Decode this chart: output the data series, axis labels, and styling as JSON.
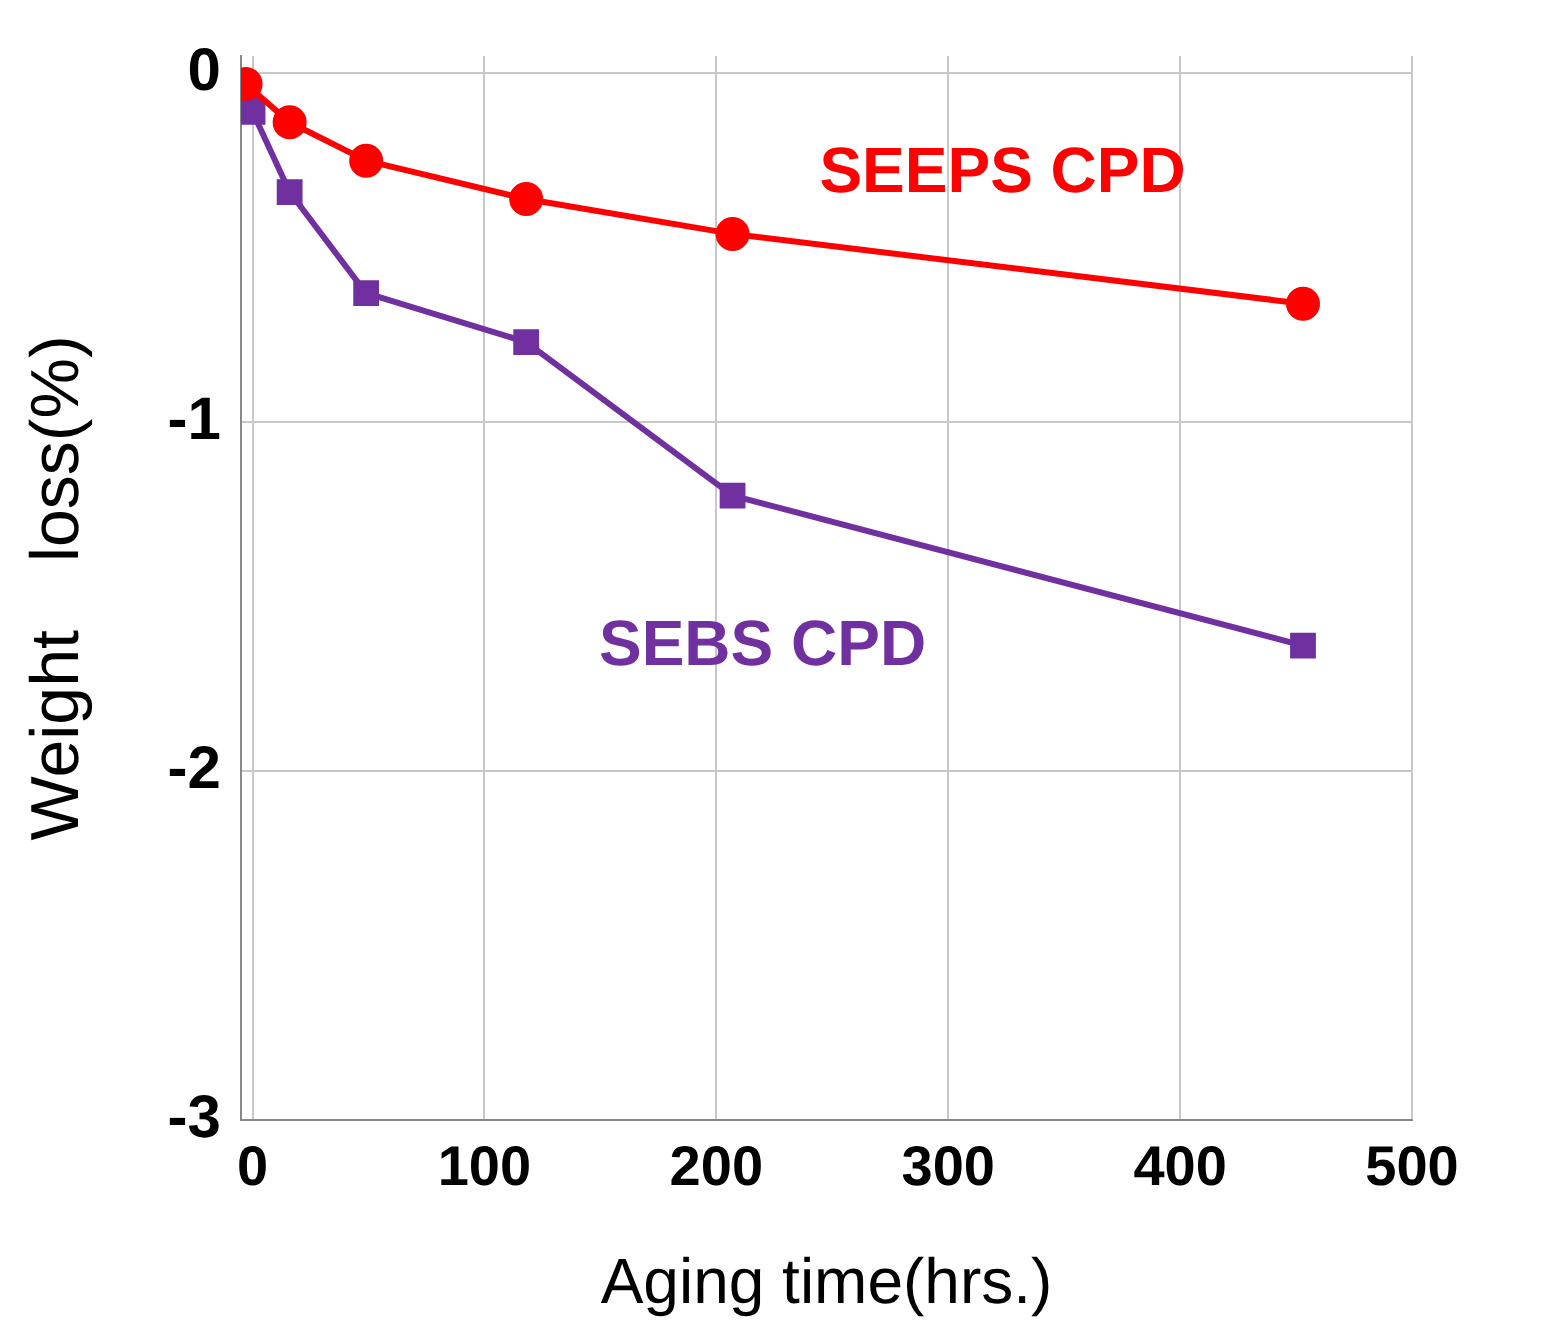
{
  "chart_data": {
    "type": "line",
    "xlabel": "Aging time(hrs.)",
    "ylabel": "Weight　loss(%)",
    "xlim": [
      -5,
      500
    ],
    "xticks": [
      0,
      100,
      200,
      300,
      400,
      500
    ],
    "ylim": [
      -3,
      0.05
    ],
    "yticks": [
      -3,
      -2,
      -1,
      0
    ],
    "grid": true,
    "legend": false,
    "series": [
      {
        "name": "SEEPS CPD",
        "color": "#ff0000",
        "marker": "circle",
        "x": [
          -3,
          16,
          49,
          118,
          207,
          453
        ],
        "values": [
          -0.03,
          -0.14,
          -0.25,
          -0.36,
          -0.46,
          -0.66
        ]
      },
      {
        "name": "SEBS CPD",
        "color": "#7030a0",
        "marker": "square",
        "x": [
          -3,
          0,
          16,
          49,
          118,
          207,
          453
        ],
        "values": [
          -0.05,
          -0.11,
          -0.34,
          -0.63,
          -0.77,
          -1.21,
          -1.64
        ]
      }
    ]
  }
}
